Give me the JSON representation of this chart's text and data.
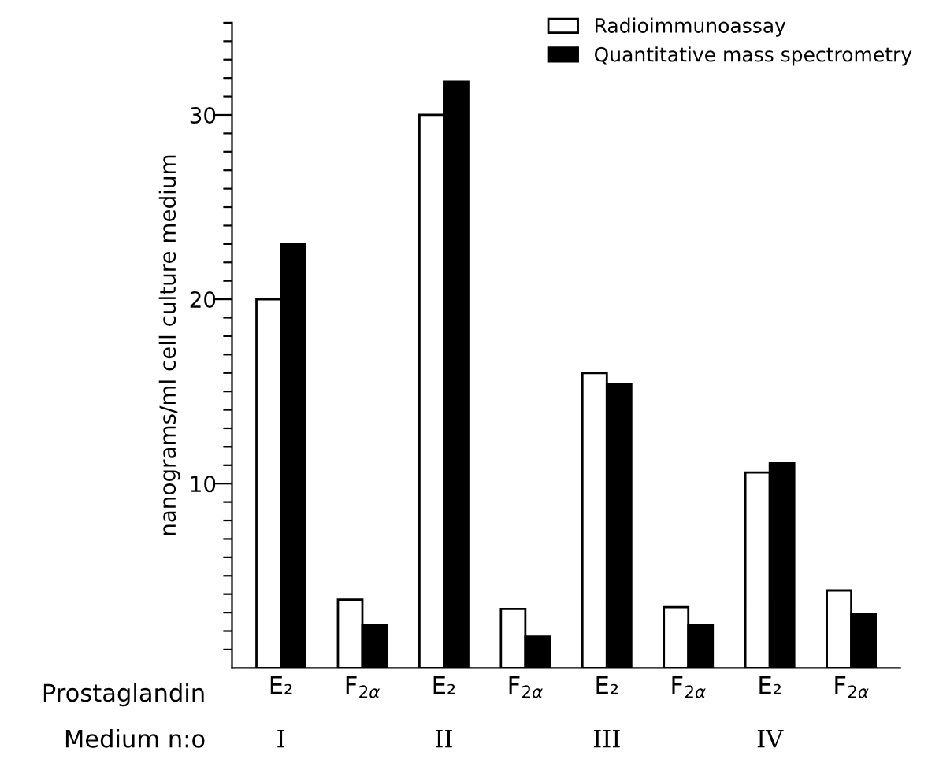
{
  "chart_data": {
    "type": "bar",
    "ylabel": "nanograms/ml cell culture medium",
    "categories": [
      "E₂",
      "F$_{2α}$",
      "E₂",
      "F$_{2α}$",
      "E₂",
      "F$_{2α}$",
      "E₂",
      "F$_{2α}$"
    ],
    "series": [
      {
        "name": "Radioimmunoassay",
        "color": "#ffffff",
        "values": [
          20,
          3.7,
          30,
          3.2,
          16,
          3.3,
          10.6,
          4.2
        ]
      },
      {
        "name": "Quantitative mass spectrometry",
        "color": "#000000",
        "values": [
          23,
          2.3,
          31.8,
          1.7,
          15.4,
          2.3,
          11.1,
          2.9
        ]
      }
    ],
    "ylim": [
      0,
      35
    ],
    "yticks": [
      {
        "value": 1,
        "label": null
      },
      {
        "value": 2,
        "label": null
      },
      {
        "value": 3,
        "label": null
      },
      {
        "value": 4,
        "label": null
      },
      {
        "value": 5,
        "label": null
      },
      {
        "value": 6,
        "label": null
      },
      {
        "value": 7,
        "label": null
      },
      {
        "value": 8,
        "label": null
      },
      {
        "value": 9,
        "label": null
      },
      10,
      {
        "value": 11,
        "label": null
      },
      {
        "value": 12,
        "label": null
      },
      {
        "value": 13,
        "label": null
      },
      {
        "value": 14,
        "label": null
      },
      {
        "value": 15,
        "label": null
      },
      {
        "value": 16,
        "label": null
      },
      {
        "value": 17,
        "label": null
      },
      {
        "value": 18,
        "label": null
      },
      {
        "value": 19,
        "label": null
      },
      20,
      {
        "value": 21,
        "label": null
      },
      {
        "value": 22,
        "label": null
      },
      {
        "value": 23,
        "label": null
      },
      {
        "value": 24,
        "label": null
      },
      {
        "value": 25,
        "label": null
      },
      {
        "value": 26,
        "label": null
      },
      {
        "value": 27,
        "label": null
      },
      {
        "value": 28,
        "label": null
      },
      {
        "value": 29,
        "label": null
      },
      30,
      {
        "value": 31,
        "label": null
      },
      {
        "value": 32,
        "label": null
      },
      {
        "value": 33,
        "label": null
      },
      {
        "value": 34,
        "label": null
      },
      {
        "value": 35,
        "label": null
      }
    ],
    "annotations": [
      "Prostaglandin",
      "Medium n:o",
      "I",
      "II",
      "III",
      "IV"
    ],
    "grid": false,
    "legend": "top right"
  }
}
